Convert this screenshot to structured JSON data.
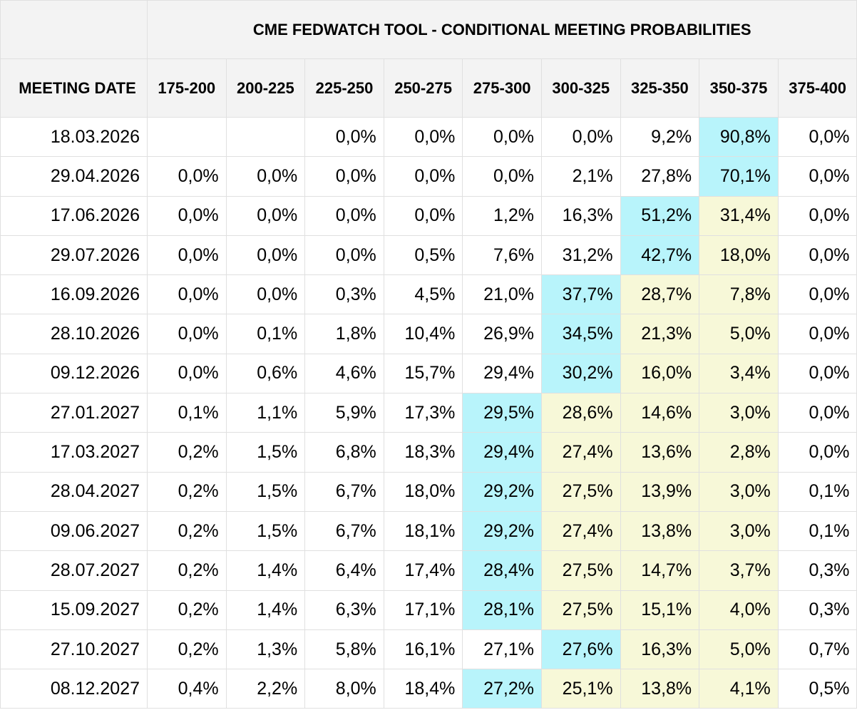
{
  "title": "CME FEDWATCH TOOL - CONDITIONAL MEETING PROBABILITIES",
  "meeting_date_header": "MEETING DATE",
  "ranges": [
    "175-200",
    "200-225",
    "225-250",
    "250-275",
    "275-300",
    "300-325",
    "325-350",
    "350-375",
    "375-400"
  ],
  "colors": {
    "cyan": "#b8f4fb",
    "yellow": "#f7f8d8",
    "header_bg": "#f3f3f3",
    "border": "#e0e0e0"
  },
  "rows": [
    {
      "date": "18.03.2026",
      "values": [
        "",
        "",
        "0,0%",
        "0,0%",
        "0,0%",
        "0,0%",
        "9,2%",
        "90,8%",
        "0,0%"
      ],
      "hl": [
        "",
        "",
        "",
        "",
        "",
        "",
        "",
        "c",
        ""
      ]
    },
    {
      "date": "29.04.2026",
      "values": [
        "0,0%",
        "0,0%",
        "0,0%",
        "0,0%",
        "0,0%",
        "2,1%",
        "27,8%",
        "70,1%",
        "0,0%"
      ],
      "hl": [
        "",
        "",
        "",
        "",
        "",
        "",
        "",
        "c",
        ""
      ]
    },
    {
      "date": "17.06.2026",
      "values": [
        "0,0%",
        "0,0%",
        "0,0%",
        "0,0%",
        "1,2%",
        "16,3%",
        "51,2%",
        "31,4%",
        "0,0%"
      ],
      "hl": [
        "",
        "",
        "",
        "",
        "",
        "",
        "c",
        "y",
        ""
      ]
    },
    {
      "date": "29.07.2026",
      "values": [
        "0,0%",
        "0,0%",
        "0,0%",
        "0,5%",
        "7,6%",
        "31,2%",
        "42,7%",
        "18,0%",
        "0,0%"
      ],
      "hl": [
        "",
        "",
        "",
        "",
        "",
        "",
        "c",
        "y",
        ""
      ]
    },
    {
      "date": "16.09.2026",
      "values": [
        "0,0%",
        "0,0%",
        "0,3%",
        "4,5%",
        "21,0%",
        "37,7%",
        "28,7%",
        "7,8%",
        "0,0%"
      ],
      "hl": [
        "",
        "",
        "",
        "",
        "",
        "c",
        "y",
        "y",
        ""
      ]
    },
    {
      "date": "28.10.2026",
      "values": [
        "0,0%",
        "0,1%",
        "1,8%",
        "10,4%",
        "26,9%",
        "34,5%",
        "21,3%",
        "5,0%",
        "0,0%"
      ],
      "hl": [
        "",
        "",
        "",
        "",
        "",
        "c",
        "y",
        "y",
        ""
      ]
    },
    {
      "date": "09.12.2026",
      "values": [
        "0,0%",
        "0,6%",
        "4,6%",
        "15,7%",
        "29,4%",
        "30,2%",
        "16,0%",
        "3,4%",
        "0,0%"
      ],
      "hl": [
        "",
        "",
        "",
        "",
        "",
        "c",
        "y",
        "y",
        ""
      ]
    },
    {
      "date": "27.01.2027",
      "values": [
        "0,1%",
        "1,1%",
        "5,9%",
        "17,3%",
        "29,5%",
        "28,6%",
        "14,6%",
        "3,0%",
        "0,0%"
      ],
      "hl": [
        "",
        "",
        "",
        "",
        "c",
        "y",
        "y",
        "y",
        ""
      ]
    },
    {
      "date": "17.03.2027",
      "values": [
        "0,2%",
        "1,5%",
        "6,8%",
        "18,3%",
        "29,4%",
        "27,4%",
        "13,6%",
        "2,8%",
        "0,0%"
      ],
      "hl": [
        "",
        "",
        "",
        "",
        "c",
        "y",
        "y",
        "y",
        ""
      ]
    },
    {
      "date": "28.04.2027",
      "values": [
        "0,2%",
        "1,5%",
        "6,7%",
        "18,0%",
        "29,2%",
        "27,5%",
        "13,9%",
        "3,0%",
        "0,1%"
      ],
      "hl": [
        "",
        "",
        "",
        "",
        "c",
        "y",
        "y",
        "y",
        ""
      ]
    },
    {
      "date": "09.06.2027",
      "values": [
        "0,2%",
        "1,5%",
        "6,7%",
        "18,1%",
        "29,2%",
        "27,4%",
        "13,8%",
        "3,0%",
        "0,1%"
      ],
      "hl": [
        "",
        "",
        "",
        "",
        "c",
        "y",
        "y",
        "y",
        ""
      ]
    },
    {
      "date": "28.07.2027",
      "values": [
        "0,2%",
        "1,4%",
        "6,4%",
        "17,4%",
        "28,4%",
        "27,5%",
        "14,7%",
        "3,7%",
        "0,3%"
      ],
      "hl": [
        "",
        "",
        "",
        "",
        "c",
        "y",
        "y",
        "y",
        ""
      ]
    },
    {
      "date": "15.09.2027",
      "values": [
        "0,2%",
        "1,4%",
        "6,3%",
        "17,1%",
        "28,1%",
        "27,5%",
        "15,1%",
        "4,0%",
        "0,3%"
      ],
      "hl": [
        "",
        "",
        "",
        "",
        "c",
        "y",
        "y",
        "y",
        ""
      ]
    },
    {
      "date": "27.10.2027",
      "values": [
        "0,2%",
        "1,3%",
        "5,8%",
        "16,1%",
        "27,1%",
        "27,6%",
        "16,3%",
        "5,0%",
        "0,7%"
      ],
      "hl": [
        "",
        "",
        "",
        "",
        "",
        "c",
        "y",
        "y",
        ""
      ]
    },
    {
      "date": "08.12.2027",
      "values": [
        "0,4%",
        "2,2%",
        "8,0%",
        "18,4%",
        "27,2%",
        "25,1%",
        "13,8%",
        "4,1%",
        "0,5%"
      ],
      "hl": [
        "",
        "",
        "",
        "",
        "c",
        "y",
        "y",
        "y",
        ""
      ]
    }
  ]
}
